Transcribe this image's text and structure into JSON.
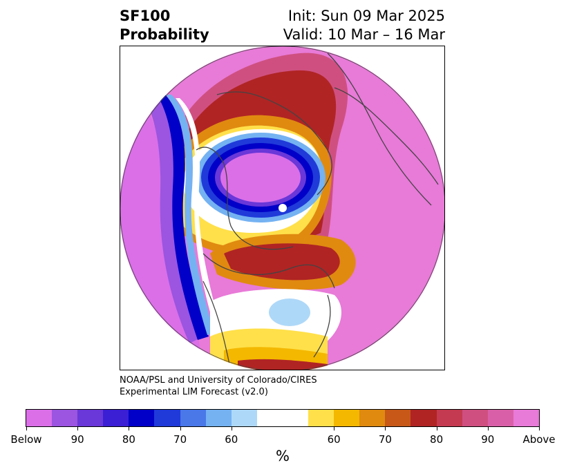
{
  "header": {
    "variable": "SF100",
    "product": "Probability",
    "init": "Init: Sun 09 Mar 2025",
    "valid": "Valid: 10 Mar – 16 Mar"
  },
  "credit": {
    "line1": "NOAA/PSL and University of Colorado/CIRES",
    "line2": "Experimental LIM Forecast (v2.0)"
  },
  "colorbar": {
    "unit": "%",
    "colors": [
      "#db6fe8",
      "#9b55e0",
      "#6a37d8",
      "#3a1fd4",
      "#0000c8",
      "#1f3ad9",
      "#4a78e8",
      "#74b2f2",
      "#aed8f8",
      "#ffffff",
      "#ffe04a",
      "#f4b800",
      "#e08a10",
      "#c75818",
      "#b02424",
      "#c43a50",
      "#cf5080",
      "#d960a8",
      "#e87ad8"
    ],
    "tick_labels": [
      "Below",
      "90",
      "80",
      "70",
      "60",
      "60",
      "70",
      "80",
      "90",
      "Above"
    ]
  },
  "map": {
    "projection": "north polar stereographic",
    "fill_colors": {
      "above_max": "#e87ad8",
      "below_max": "#db6fe8",
      "deep_blue": "#0000c8",
      "light_blue": "#aed8f8",
      "dark_red": "#b02424",
      "gold": "#f4b800",
      "yellow": "#ffe04a",
      "coastline": "#444444"
    }
  }
}
